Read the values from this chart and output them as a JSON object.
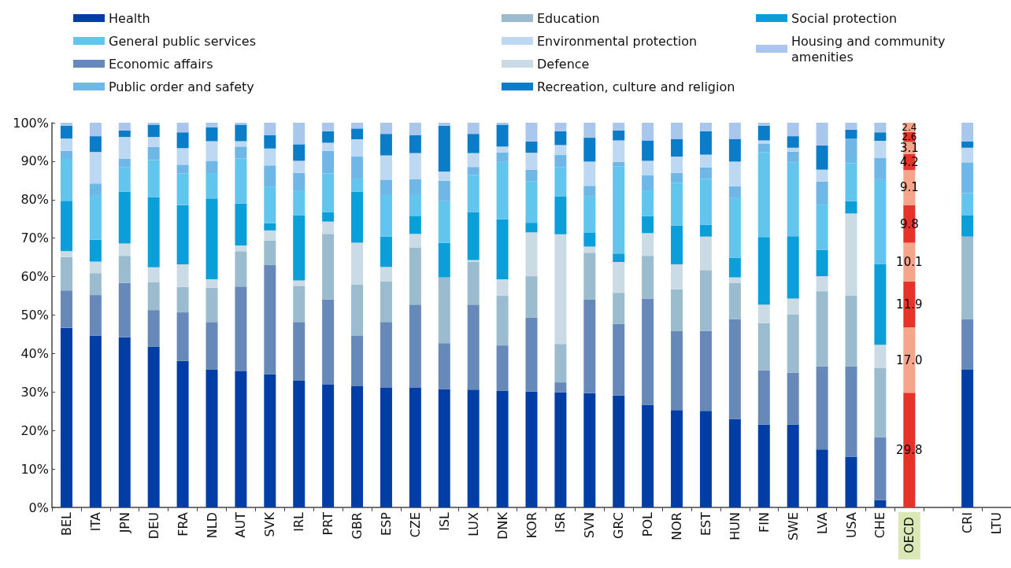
{
  "chart_data": {
    "type": "bar",
    "stacked": true,
    "legend": "top left",
    "grid": false,
    "categories": [
      "BEL",
      "ITA",
      "JPN",
      "DEU",
      "FRA",
      "NLD",
      "AUT",
      "SVK",
      "IRL",
      "PRT",
      "GBR",
      "ESP",
      "CZE",
      "ISL",
      "LUX",
      "DNK",
      "KOR",
      "ISR",
      "SVN",
      "GRC",
      "POL",
      "NOR",
      "EST",
      "HUN",
      "FIN",
      "SWE",
      "LVA",
      "USA",
      "CHE",
      "OECD",
      null,
      "CRI",
      "LTU"
    ],
    "ylim": [
      0,
      100
    ],
    "yticks": [
      {
        "value": 0,
        "label": "0%"
      },
      {
        "value": 10,
        "label": "10%"
      },
      {
        "value": 20,
        "label": "20%"
      },
      {
        "value": 30,
        "label": "30%"
      },
      {
        "value": 40,
        "label": "40%"
      },
      {
        "value": 50,
        "label": "50%"
      },
      {
        "value": 60,
        "label": "60%"
      },
      {
        "value": 70,
        "label": "70%"
      },
      {
        "value": 80,
        "label": "80%"
      },
      {
        "value": 90,
        "label": "90%"
      },
      {
        "value": 100,
        "label": "100%"
      }
    ],
    "series": [
      {
        "name": "Health",
        "color": "#003ea6",
        "values": [
          46.7,
          44.6,
          44.2,
          41.8,
          38.1,
          35.8,
          35.4,
          34.6,
          32.9,
          31.9,
          31.5,
          31.1,
          31.1,
          30.8,
          30.6,
          30.3,
          30.1,
          29.9,
          29.7,
          29.1,
          26.7,
          25.3,
          25.1,
          23.0,
          21.5,
          21.5,
          15.1,
          13.2,
          1.9,
          29.8,
          null,
          35.8,
          null
        ],
        "colors": [
          null,
          null,
          null,
          null,
          null,
          null,
          null,
          null,
          null,
          null,
          null,
          null,
          null,
          null,
          null,
          null,
          null,
          null,
          null,
          null,
          null,
          null,
          null,
          null,
          null,
          null,
          null,
          null,
          null,
          "#e5332a",
          null,
          null,
          null
        ],
        "value_labels": [
          null,
          null,
          null,
          null,
          null,
          null,
          null,
          null,
          null,
          null,
          null,
          null,
          null,
          null,
          null,
          null,
          null,
          null,
          null,
          null,
          null,
          null,
          null,
          null,
          null,
          null,
          null,
          null,
          null,
          "29.8",
          null,
          null,
          null
        ]
      },
      {
        "name": "Economic affairs",
        "color": "#6689b9",
        "values": [
          9.7,
          10.6,
          14.2,
          9.5,
          12.6,
          12.4,
          22.0,
          28.4,
          15.3,
          22.2,
          13.1,
          17.1,
          21.6,
          11.9,
          22.1,
          11.8,
          19.2,
          2.6,
          24.3,
          18.6,
          27.6,
          20.5,
          20.8,
          26.0,
          14.2,
          13.5,
          21.6,
          23.5,
          16.4,
          17.0,
          null,
          13.2,
          null
        ],
        "colors": [
          null,
          null,
          null,
          null,
          null,
          null,
          null,
          null,
          null,
          null,
          null,
          null,
          null,
          null,
          null,
          null,
          null,
          null,
          null,
          null,
          null,
          null,
          null,
          null,
          null,
          null,
          null,
          null,
          null,
          "#f4a58a",
          null,
          null,
          null
        ],
        "value_labels": [
          null,
          null,
          null,
          null,
          null,
          null,
          null,
          null,
          null,
          null,
          null,
          null,
          null,
          null,
          null,
          null,
          null,
          null,
          null,
          null,
          null,
          null,
          null,
          null,
          null,
          null,
          null,
          null,
          null,
          "17.0",
          null,
          null,
          null
        ]
      },
      {
        "name": "Education",
        "color": "#9bbccf",
        "values": [
          8.7,
          5.7,
          7.0,
          7.3,
          6.6,
          8.9,
          9.2,
          6.4,
          9.4,
          17.0,
          13.4,
          10.6,
          14.9,
          17.1,
          11.1,
          12.9,
          10.8,
          10.0,
          12.2,
          8.1,
          11.1,
          10.9,
          15.8,
          9.4,
          12.2,
          15.1,
          19.5,
          18.3,
          18.0,
          11.9,
          null,
          21.4,
          null
        ],
        "colors": [
          null,
          null,
          null,
          null,
          null,
          null,
          null,
          null,
          null,
          null,
          null,
          null,
          null,
          null,
          null,
          null,
          null,
          null,
          null,
          null,
          null,
          null,
          null,
          null,
          null,
          null,
          null,
          null,
          null,
          "#e5332a",
          null,
          null,
          null
        ],
        "value_labels": [
          null,
          null,
          null,
          null,
          null,
          null,
          null,
          null,
          null,
          null,
          null,
          null,
          null,
          null,
          null,
          null,
          null,
          null,
          null,
          null,
          null,
          null,
          null,
          null,
          null,
          null,
          null,
          null,
          null,
          "11.9",
          null,
          null,
          null
        ]
      },
      {
        "name": "Defence",
        "color": "#cbdbe5",
        "values": [
          1.5,
          3.0,
          3.2,
          3.8,
          5.9,
          2.2,
          1.5,
          2.6,
          1.4,
          3.2,
          10.8,
          3.7,
          3.5,
          0,
          0.5,
          4.3,
          11.4,
          28.5,
          1.6,
          8.0,
          5.9,
          6.5,
          8.7,
          1.4,
          4.8,
          4.2,
          3.9,
          21.4,
          6.0,
          10.1,
          null,
          0,
          null
        ],
        "colors": [
          null,
          null,
          null,
          null,
          null,
          null,
          null,
          null,
          null,
          null,
          null,
          null,
          null,
          null,
          null,
          null,
          null,
          null,
          null,
          null,
          null,
          null,
          null,
          null,
          null,
          null,
          null,
          null,
          null,
          "#f4a58a",
          null,
          null,
          null
        ],
        "value_labels": [
          null,
          null,
          null,
          null,
          null,
          null,
          null,
          null,
          null,
          null,
          null,
          null,
          null,
          null,
          null,
          null,
          null,
          null,
          null,
          null,
          null,
          null,
          null,
          null,
          null,
          null,
          null,
          null,
          null,
          "10.1",
          null,
          null,
          null
        ]
      },
      {
        "name": "Social protection",
        "color": "#0b9fda",
        "values": [
          13.1,
          5.7,
          13.5,
          18.2,
          15.4,
          21.0,
          10.9,
          1.9,
          16.9,
          2.5,
          13.3,
          7.9,
          4.7,
          9.0,
          12.5,
          15.6,
          2.5,
          9.9,
          3.7,
          2.2,
          4.4,
          10.1,
          3.1,
          5.1,
          17.6,
          16.2,
          6.8,
          3.2,
          21.0,
          9.8,
          null,
          5.6,
          null
        ],
        "colors": [
          null,
          null,
          null,
          null,
          null,
          null,
          null,
          null,
          null,
          null,
          null,
          null,
          null,
          null,
          null,
          null,
          null,
          null,
          null,
          null,
          null,
          null,
          null,
          null,
          null,
          null,
          null,
          null,
          null,
          "#e5332a",
          null,
          null,
          null
        ],
        "value_labels": [
          null,
          null,
          null,
          null,
          null,
          null,
          null,
          null,
          null,
          null,
          null,
          null,
          null,
          null,
          null,
          null,
          null,
          null,
          null,
          null,
          null,
          null,
          null,
          null,
          null,
          null,
          null,
          null,
          null,
          "9.8",
          null,
          null,
          null
        ]
      },
      {
        "name": "General public services",
        "color": "#62c5ee",
        "values": [
          11.1,
          11.6,
          6.4,
          9.7,
          8.2,
          6.6,
          11.7,
          9.5,
          6.5,
          10.0,
          3.4,
          11.0,
          5.6,
          10.8,
          9.6,
          14.9,
          10.8,
          7.6,
          9.3,
          22.7,
          6.7,
          11.1,
          11.9,
          15.5,
          22.1,
          19.2,
          11.8,
          9.9,
          22.0,
          9.1,
          null,
          5.7,
          null
        ],
        "colors": [
          null,
          null,
          null,
          null,
          null,
          null,
          null,
          null,
          null,
          null,
          null,
          null,
          null,
          null,
          null,
          null,
          null,
          null,
          null,
          null,
          null,
          null,
          null,
          null,
          null,
          null,
          null,
          null,
          null,
          "#f4a58a",
          null,
          null,
          null
        ],
        "value_labels": [
          null,
          null,
          null,
          null,
          null,
          null,
          null,
          null,
          null,
          null,
          null,
          null,
          null,
          null,
          null,
          null,
          null,
          null,
          null,
          null,
          null,
          null,
          null,
          null,
          null,
          null,
          null,
          null,
          null,
          "9.1",
          null,
          null,
          null
        ]
      },
      {
        "name": "Public order and safety",
        "color": "#6fb7e6",
        "values": [
          1.9,
          3.0,
          2.1,
          3.4,
          2.3,
          3.2,
          3.1,
          5.5,
          4.6,
          5.9,
          5.7,
          3.8,
          3.9,
          5.3,
          2.1,
          2.5,
          3.0,
          3.1,
          2.8,
          1.1,
          3.9,
          2.6,
          3.0,
          3.1,
          2.2,
          2.8,
          6.0,
          6.4,
          5.5,
          4.2,
          null,
          8.0,
          null
        ],
        "colors": [
          null,
          null,
          null,
          null,
          null,
          null,
          null,
          null,
          null,
          null,
          null,
          null,
          null,
          null,
          null,
          null,
          null,
          null,
          null,
          null,
          null,
          null,
          null,
          null,
          null,
          null,
          null,
          null,
          null,
          "#e5332a",
          null,
          null,
          null
        ],
        "value_labels": [
          null,
          null,
          null,
          null,
          null,
          null,
          null,
          null,
          null,
          null,
          null,
          null,
          null,
          null,
          null,
          null,
          null,
          null,
          null,
          null,
          null,
          null,
          null,
          null,
          null,
          null,
          null,
          null,
          null,
          "4.2",
          null,
          null,
          null
        ]
      },
      {
        "name": "Environmental protection",
        "color": "#bcd8f2",
        "values": [
          3.2,
          8.2,
          5.7,
          2.6,
          4.3,
          5.1,
          1.4,
          4.4,
          3.1,
          2.1,
          4.5,
          6.3,
          6.8,
          2.4,
          3.6,
          1.5,
          4.4,
          2.6,
          6.3,
          5.6,
          3.8,
          4.2,
          3.3,
          6.4,
          0.8,
          1.0,
          3.1,
          0,
          4.5,
          3.1,
          null,
          3.8,
          null
        ],
        "colors": [
          null,
          null,
          null,
          null,
          null,
          null,
          null,
          null,
          null,
          null,
          null,
          null,
          null,
          null,
          null,
          null,
          null,
          null,
          null,
          null,
          null,
          null,
          null,
          null,
          null,
          null,
          null,
          null,
          null,
          "#f4a58a",
          null,
          null,
          null
        ],
        "value_labels": [
          null,
          null,
          null,
          null,
          null,
          null,
          null,
          null,
          null,
          null,
          null,
          null,
          null,
          null,
          null,
          null,
          null,
          null,
          null,
          null,
          null,
          null,
          null,
          null,
          null,
          null,
          null,
          null,
          null,
          "3.1",
          null,
          null,
          null
        ]
      },
      {
        "name": "Recreation, culture and religion",
        "color": "#0b7dc8",
        "values": [
          3.3,
          4.1,
          1.7,
          3.2,
          4.1,
          3.6,
          4.3,
          3.5,
          4.3,
          3.0,
          2.8,
          5.6,
          4.7,
          11.9,
          5.0,
          5.7,
          2.9,
          3.6,
          6.2,
          2.6,
          5.3,
          4.6,
          6.1,
          5.9,
          3.8,
          3.0,
          6.3,
          2.3,
          2.2,
          2.6,
          null,
          1.6,
          null
        ],
        "colors": [
          null,
          null,
          null,
          null,
          null,
          null,
          null,
          null,
          null,
          null,
          null,
          null,
          null,
          null,
          null,
          null,
          null,
          null,
          null,
          null,
          null,
          null,
          null,
          null,
          null,
          null,
          null,
          null,
          null,
          "#e5332a",
          null,
          null,
          null
        ],
        "value_labels": [
          null,
          null,
          null,
          null,
          null,
          null,
          null,
          null,
          null,
          null,
          null,
          null,
          null,
          null,
          null,
          null,
          null,
          null,
          null,
          null,
          null,
          null,
          null,
          null,
          null,
          null,
          null,
          null,
          null,
          "2.6",
          null,
          null,
          null
        ]
      },
      {
        "name": "Housing and community amenities",
        "color": "#a9c6ec",
        "values": [
          0.8,
          3.5,
          2.0,
          0.5,
          2.5,
          1.2,
          0.5,
          3.2,
          5.6,
          2.2,
          1.5,
          2.9,
          3.2,
          0.8,
          2.9,
          0.5,
          4.9,
          2.2,
          3.9,
          2.0,
          4.6,
          4.2,
          2.2,
          4.2,
          0.8,
          3.5,
          5.9,
          1.8,
          2.5,
          2.4,
          null,
          4.9,
          null
        ],
        "colors": [
          null,
          null,
          null,
          null,
          null,
          null,
          null,
          null,
          null,
          null,
          null,
          null,
          null,
          null,
          null,
          null,
          null,
          null,
          null,
          null,
          null,
          null,
          null,
          null,
          null,
          null,
          null,
          null,
          null,
          "#f4a58a",
          null,
          null,
          null
        ],
        "value_labels": [
          null,
          null,
          null,
          null,
          null,
          null,
          null,
          null,
          null,
          null,
          null,
          null,
          null,
          null,
          null,
          null,
          null,
          null,
          null,
          null,
          null,
          null,
          null,
          null,
          null,
          null,
          null,
          null,
          null,
          "2.4",
          null,
          null,
          null
        ]
      }
    ]
  }
}
